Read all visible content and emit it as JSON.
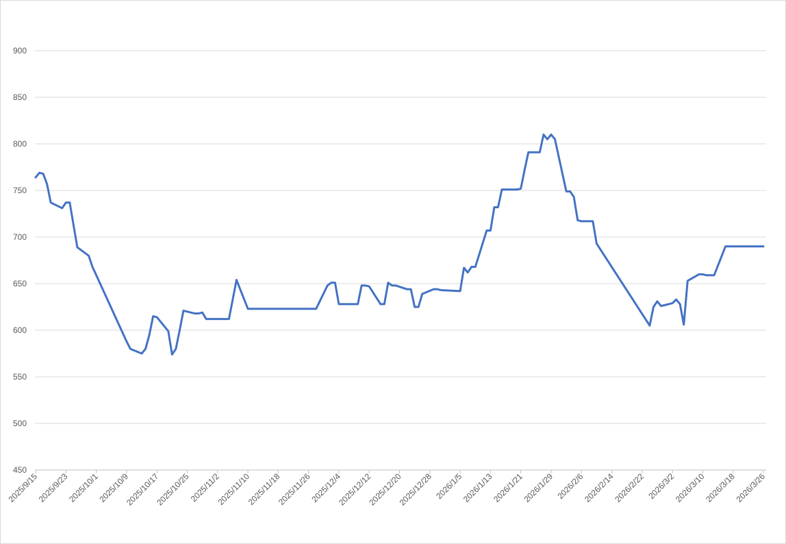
{
  "chart_data": {
    "type": "line",
    "x": [
      "2025/9/15",
      "2025/9/16",
      "2025/9/17",
      "2025/9/18",
      "2025/9/19",
      "2025/9/22",
      "2025/9/23",
      "2025/9/24",
      "2025/9/25",
      "2025/9/26",
      "2025/9/29",
      "2025/9/30",
      "2025/10/9",
      "2025/10/10",
      "2025/10/13",
      "2025/10/14",
      "2025/10/15",
      "2025/10/16",
      "2025/10/17",
      "2025/10/20",
      "2025/10/21",
      "2025/10/22",
      "2025/10/23",
      "2025/10/24",
      "2025/10/27",
      "2025/10/28",
      "2025/10/29",
      "2025/10/30",
      "2025/10/31",
      "2025/11/3",
      "2025/11/4",
      "2025/11/5",
      "2025/11/6",
      "2025/11/7",
      "2025/11/10",
      "2025/11/11",
      "2025/11/12",
      "2025/11/13",
      "2025/11/14",
      "2025/11/17",
      "2025/11/18",
      "2025/11/19",
      "2025/11/20",
      "2025/11/21",
      "2025/11/24",
      "2025/11/25",
      "2025/11/26",
      "2025/11/27",
      "2025/11/28",
      "2025/12/1",
      "2025/12/2",
      "2025/12/3",
      "2025/12/4",
      "2025/12/5",
      "2025/12/8",
      "2025/12/9",
      "2025/12/10",
      "2025/12/11",
      "2025/12/12",
      "2025/12/15",
      "2025/12/16",
      "2025/12/17",
      "2025/12/18",
      "2025/12/19",
      "2025/12/22",
      "2025/12/23",
      "2025/12/24",
      "2025/12/25",
      "2025/12/26",
      "2025/12/29",
      "2025/12/30",
      "2025/12/31",
      "2026/1/5",
      "2026/1/6",
      "2026/1/7",
      "2026/1/8",
      "2026/1/9",
      "2026/1/12",
      "2026/1/13",
      "2026/1/14",
      "2026/1/15",
      "2026/1/16",
      "2026/1/19",
      "2026/1/20",
      "2026/1/21",
      "2026/1/22",
      "2026/1/23",
      "2026/1/26",
      "2026/1/27",
      "2026/1/28",
      "2026/1/29",
      "2026/1/30",
      "2026/2/2",
      "2026/2/3",
      "2026/2/4",
      "2026/2/5",
      "2026/2/6",
      "2026/2/9",
      "2026/2/10",
      "2026/2/24",
      "2026/2/25",
      "2026/2/26",
      "2026/2/27",
      "2026/3/2",
      "2026/3/3",
      "2026/3/4",
      "2026/3/5",
      "2026/3/6",
      "2026/3/9",
      "2026/3/10",
      "2026/3/11",
      "2026/3/12",
      "2026/3/13",
      "2026/3/16",
      "2026/3/17",
      "2026/3/18",
      "2026/3/19",
      "2026/3/20",
      "2026/3/23",
      "2026/3/24",
      "2026/3/25",
      "2026/3/26"
    ],
    "series": [
      {
        "color": "#4472c4",
        "values": [
          764,
          769,
          768,
          757,
          737,
          731,
          737,
          737,
          713,
          689,
          680,
          668,
          588,
          580,
          575,
          580,
          595,
          615,
          614,
          599,
          574,
          580,
          600,
          621,
          618,
          618,
          619,
          612,
          612,
          612,
          612,
          612,
          633,
          654,
          623,
          623,
          623,
          623,
          623,
          623,
          623,
          623,
          623,
          623,
          623,
          623,
          623,
          623,
          623,
          648,
          651,
          651,
          628,
          628,
          628,
          628,
          648,
          648,
          647,
          628,
          628,
          651,
          648,
          648,
          644,
          644,
          625,
          625,
          639,
          644,
          644,
          643,
          642,
          667,
          662,
          668,
          668,
          707,
          707,
          732,
          732,
          751,
          751,
          751,
          752,
          772,
          791,
          791,
          810,
          805,
          810,
          805,
          749,
          749,
          743,
          718,
          717,
          717,
          693,
          605,
          625,
          631,
          626,
          629,
          633,
          628,
          606,
          653,
          660,
          660,
          659,
          659,
          659,
          690,
          690,
          690,
          690,
          690,
          690,
          690,
          690,
          690
        ]
      }
    ],
    "xlim": [
      "2025/9/15",
      "2026/3/26"
    ],
    "xticks": [
      "2025/9/15",
      "2025/9/23",
      "2025/10/1",
      "2025/10/9",
      "2025/10/17",
      "2025/10/25",
      "2025/11/2",
      "2025/11/10",
      "2025/11/18",
      "2025/11/26",
      "2025/12/4",
      "2025/12/12",
      "2025/12/20",
      "2025/12/28",
      "2026/1/5",
      "2026/1/13",
      "2026/1/21",
      "2026/1/29",
      "2026/2/6",
      "2026/2/14",
      "2026/2/22",
      "2026/3/2",
      "2026/3/10",
      "2026/3/18",
      "2026/3/26"
    ],
    "ylim": [
      450,
      900
    ],
    "yticks": [
      450,
      500,
      550,
      600,
      650,
      700,
      750,
      800,
      850,
      900
    ],
    "grid": true
  }
}
